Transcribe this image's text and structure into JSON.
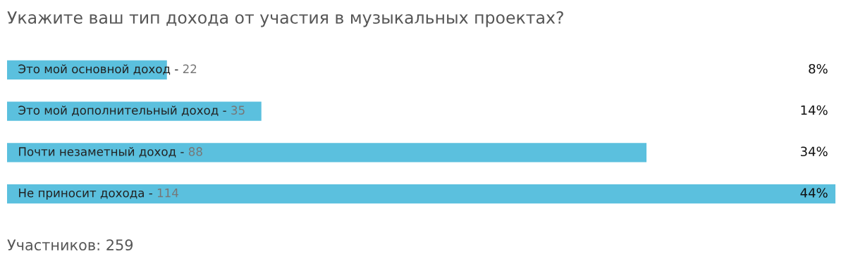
{
  "chart_data": {
    "type": "bar",
    "orientation": "horizontal",
    "title": "Укажите ваш тип дохода от участия в музыкальных проектах?",
    "categories": [
      "Это мой основной доход -",
      "Это мой дополнительный доход -",
      "Почти незаметный доход -",
      "Не приносит дохода -"
    ],
    "values": [
      22,
      35,
      88,
      114
    ],
    "color": "#5bc0de",
    "xlim": [
      0,
      114
    ],
    "data_labels": true,
    "annotations": [
      "8%",
      "14%",
      "34%",
      "44%",
      "Участников: 259"
    ]
  }
}
